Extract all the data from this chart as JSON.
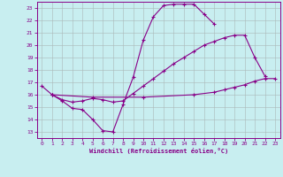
{
  "xlabel": "Windchill (Refroidissement éolien,°C)",
  "bg_color": "#c8eef0",
  "grid_color": "#aab8b8",
  "line_color": "#880088",
  "xlim": [
    -0.5,
    23.5
  ],
  "ylim": [
    12.5,
    23.5
  ],
  "xticks": [
    0,
    1,
    2,
    3,
    4,
    5,
    6,
    7,
    8,
    9,
    10,
    11,
    12,
    13,
    14,
    15,
    16,
    17,
    18,
    19,
    20,
    21,
    22,
    23
  ],
  "yticks": [
    13,
    14,
    15,
    16,
    17,
    18,
    19,
    20,
    21,
    22,
    23
  ],
  "curve1_x": [
    0,
    1,
    2,
    3,
    4,
    5,
    6,
    7,
    8,
    9,
    10,
    11,
    12,
    13,
    14,
    15,
    16,
    17
  ],
  "curve1_y": [
    16.7,
    16.0,
    15.5,
    14.9,
    14.8,
    14.0,
    13.1,
    13.0,
    15.2,
    17.4,
    20.4,
    22.3,
    23.2,
    23.3,
    23.3,
    23.3,
    22.5,
    21.7
  ],
  "curve2_x": [
    1,
    2,
    3,
    4,
    5,
    6,
    7,
    8,
    9,
    10,
    11,
    12,
    13,
    14,
    15,
    16,
    17,
    18,
    19,
    20,
    21,
    22
  ],
  "curve2_y": [
    16.0,
    15.6,
    15.4,
    15.5,
    15.7,
    15.6,
    15.4,
    15.5,
    16.1,
    16.7,
    17.3,
    17.9,
    18.5,
    19.0,
    19.5,
    20.0,
    20.3,
    20.6,
    20.8,
    20.8,
    19.0,
    17.5
  ],
  "curve3_x": [
    1,
    5,
    10,
    15,
    17,
    18,
    19,
    20,
    21,
    22,
    23
  ],
  "curve3_y": [
    16.0,
    15.8,
    15.8,
    16.0,
    16.2,
    16.4,
    16.6,
    16.8,
    17.1,
    17.3,
    17.3
  ]
}
